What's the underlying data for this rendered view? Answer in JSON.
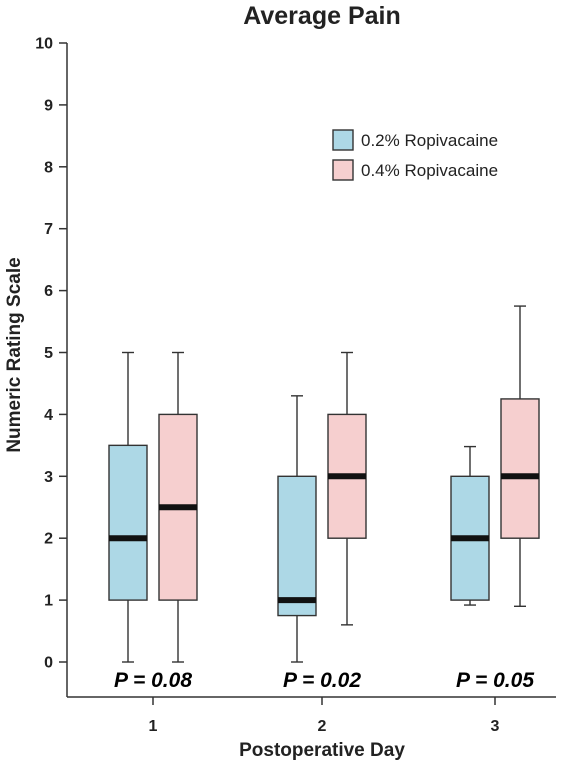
{
  "chart_data": {
    "type": "box",
    "title": "Average Pain",
    "xlabel": "Postoperative Day",
    "ylabel": "Numeric Rating Scale",
    "ylim": [
      0,
      10
    ],
    "yticks": [
      0,
      1,
      2,
      3,
      4,
      5,
      6,
      7,
      8,
      9,
      10
    ],
    "categories": [
      "1",
      "2",
      "3"
    ],
    "legend": {
      "position": "top-right"
    },
    "series": [
      {
        "name": "0.2% Ropivacaine",
        "color": "#add8e6",
        "boxes": [
          {
            "min": 0,
            "q1": 1,
            "median": 2,
            "q3": 3.5,
            "max": 5
          },
          {
            "min": 0,
            "q1": 0.75,
            "median": 1,
            "q3": 3,
            "max": 4.3
          },
          {
            "min": 0.92,
            "q1": 1,
            "median": 2,
            "q3": 3,
            "max": 3.48
          }
        ]
      },
      {
        "name": "0.4% Ropivacaine",
        "color": "#f6cfcf",
        "boxes": [
          {
            "min": 0,
            "q1": 1,
            "median": 2.5,
            "q3": 4,
            "max": 5
          },
          {
            "min": 0.6,
            "q1": 2,
            "median": 3,
            "q3": 4,
            "max": 5
          },
          {
            "min": 0.9,
            "q1": 2,
            "median": 3,
            "q3": 4.25,
            "max": 5.75
          }
        ]
      }
    ],
    "annotations": [
      "P = 0.08",
      "P = 0.02",
      "P = 0.05"
    ]
  }
}
